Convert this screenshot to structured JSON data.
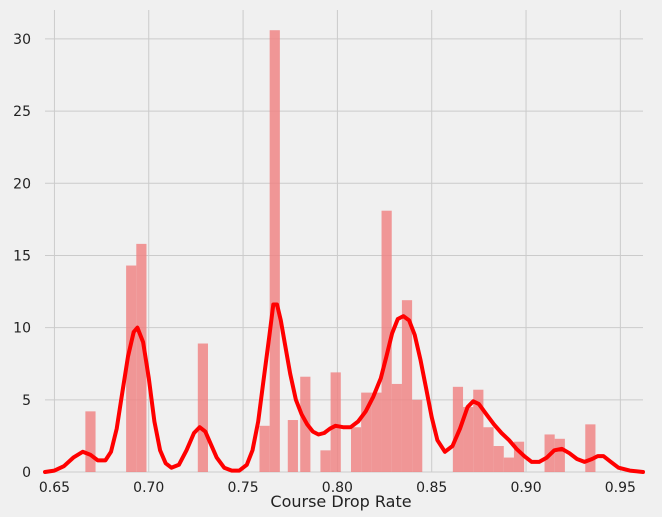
{
  "chart_data": {
    "type": "bar",
    "title": "",
    "xlabel": "Course Drop Rate",
    "ylabel": "",
    "xlim": [
      0.645,
      0.962
    ],
    "ylim": [
      0,
      32
    ],
    "grid": true,
    "x_ticks": [
      0.65,
      0.7,
      0.75,
      0.8,
      0.85,
      0.9,
      0.95
    ],
    "x_tick_labels": [
      "0.65",
      "0.70",
      "0.75",
      "0.80",
      "0.85",
      "0.90",
      "0.95"
    ],
    "y_ticks": [
      0,
      5,
      10,
      15,
      20,
      25,
      30
    ],
    "y_tick_labels": [
      "0",
      "5",
      "10",
      "15",
      "20",
      "25",
      "30"
    ],
    "histogram": {
      "bin_width": 0.0054,
      "bins": [
        {
          "x": 0.6664,
          "height": 4.2
        },
        {
          "x": 0.688,
          "height": 14.3
        },
        {
          "x": 0.6934,
          "height": 15.8
        },
        {
          "x": 0.726,
          "height": 8.9
        },
        {
          "x": 0.7587,
          "height": 3.2
        },
        {
          "x": 0.7641,
          "height": 30.6
        },
        {
          "x": 0.7737,
          "height": 3.6
        },
        {
          "x": 0.7803,
          "height": 6.6
        },
        {
          "x": 0.791,
          "height": 1.5
        },
        {
          "x": 0.7964,
          "height": 6.9
        },
        {
          "x": 0.8072,
          "height": 3.1
        },
        {
          "x": 0.8126,
          "height": 5.5
        },
        {
          "x": 0.818,
          "height": 5.5
        },
        {
          "x": 0.8234,
          "height": 18.1
        },
        {
          "x": 0.8288,
          "height": 6.1
        },
        {
          "x": 0.8342,
          "height": 11.9
        },
        {
          "x": 0.8396,
          "height": 5.0
        },
        {
          "x": 0.8612,
          "height": 5.9
        },
        {
          "x": 0.8666,
          "height": 4.5
        },
        {
          "x": 0.872,
          "height": 5.7
        },
        {
          "x": 0.8774,
          "height": 3.1
        },
        {
          "x": 0.8828,
          "height": 1.8
        },
        {
          "x": 0.8882,
          "height": 1.0
        },
        {
          "x": 0.8936,
          "height": 2.1
        },
        {
          "x": 0.9098,
          "height": 2.6
        },
        {
          "x": 0.9152,
          "height": 2.3
        },
        {
          "x": 0.9314,
          "height": 3.3
        }
      ]
    },
    "kde_curve": {
      "x": [
        0.645,
        0.65,
        0.655,
        0.66,
        0.665,
        0.669,
        0.673,
        0.677,
        0.68,
        0.683,
        0.686,
        0.689,
        0.692,
        0.694,
        0.697,
        0.7,
        0.703,
        0.706,
        0.709,
        0.712,
        0.716,
        0.72,
        0.724,
        0.727,
        0.73,
        0.733,
        0.736,
        0.74,
        0.744,
        0.748,
        0.752,
        0.755,
        0.758,
        0.761,
        0.764,
        0.766,
        0.768,
        0.77,
        0.772,
        0.775,
        0.778,
        0.781,
        0.784,
        0.787,
        0.79,
        0.793,
        0.796,
        0.799,
        0.803,
        0.807,
        0.811,
        0.815,
        0.819,
        0.823,
        0.826,
        0.829,
        0.832,
        0.835,
        0.838,
        0.841,
        0.844,
        0.847,
        0.85,
        0.853,
        0.857,
        0.861,
        0.865,
        0.869,
        0.872,
        0.875,
        0.879,
        0.883,
        0.887,
        0.891,
        0.895,
        0.899,
        0.903,
        0.907,
        0.911,
        0.915,
        0.919,
        0.923,
        0.927,
        0.931,
        0.935,
        0.938,
        0.941,
        0.945,
        0.949,
        0.955,
        0.962
      ],
      "y": [
        0.0,
        0.1,
        0.4,
        1.0,
        1.4,
        1.2,
        0.8,
        0.8,
        1.4,
        3.0,
        5.5,
        8.0,
        9.7,
        10.0,
        9.0,
        6.5,
        3.5,
        1.5,
        0.6,
        0.3,
        0.5,
        1.5,
        2.7,
        3.1,
        2.8,
        1.9,
        1.0,
        0.3,
        0.1,
        0.1,
        0.5,
        1.5,
        3.5,
        6.5,
        9.5,
        11.6,
        11.6,
        10.5,
        9.0,
        6.8,
        5.0,
        4.0,
        3.3,
        2.8,
        2.6,
        2.7,
        3.0,
        3.2,
        3.1,
        3.1,
        3.5,
        4.2,
        5.2,
        6.5,
        8.0,
        9.6,
        10.6,
        10.8,
        10.5,
        9.5,
        7.8,
        5.8,
        3.8,
        2.2,
        1.4,
        1.8,
        3.0,
        4.5,
        4.9,
        4.7,
        4.0,
        3.3,
        2.7,
        2.2,
        1.6,
        1.1,
        0.7,
        0.7,
        1.0,
        1.5,
        1.6,
        1.3,
        0.9,
        0.7,
        0.9,
        1.1,
        1.1,
        0.7,
        0.3,
        0.1,
        0.0
      ]
    }
  }
}
